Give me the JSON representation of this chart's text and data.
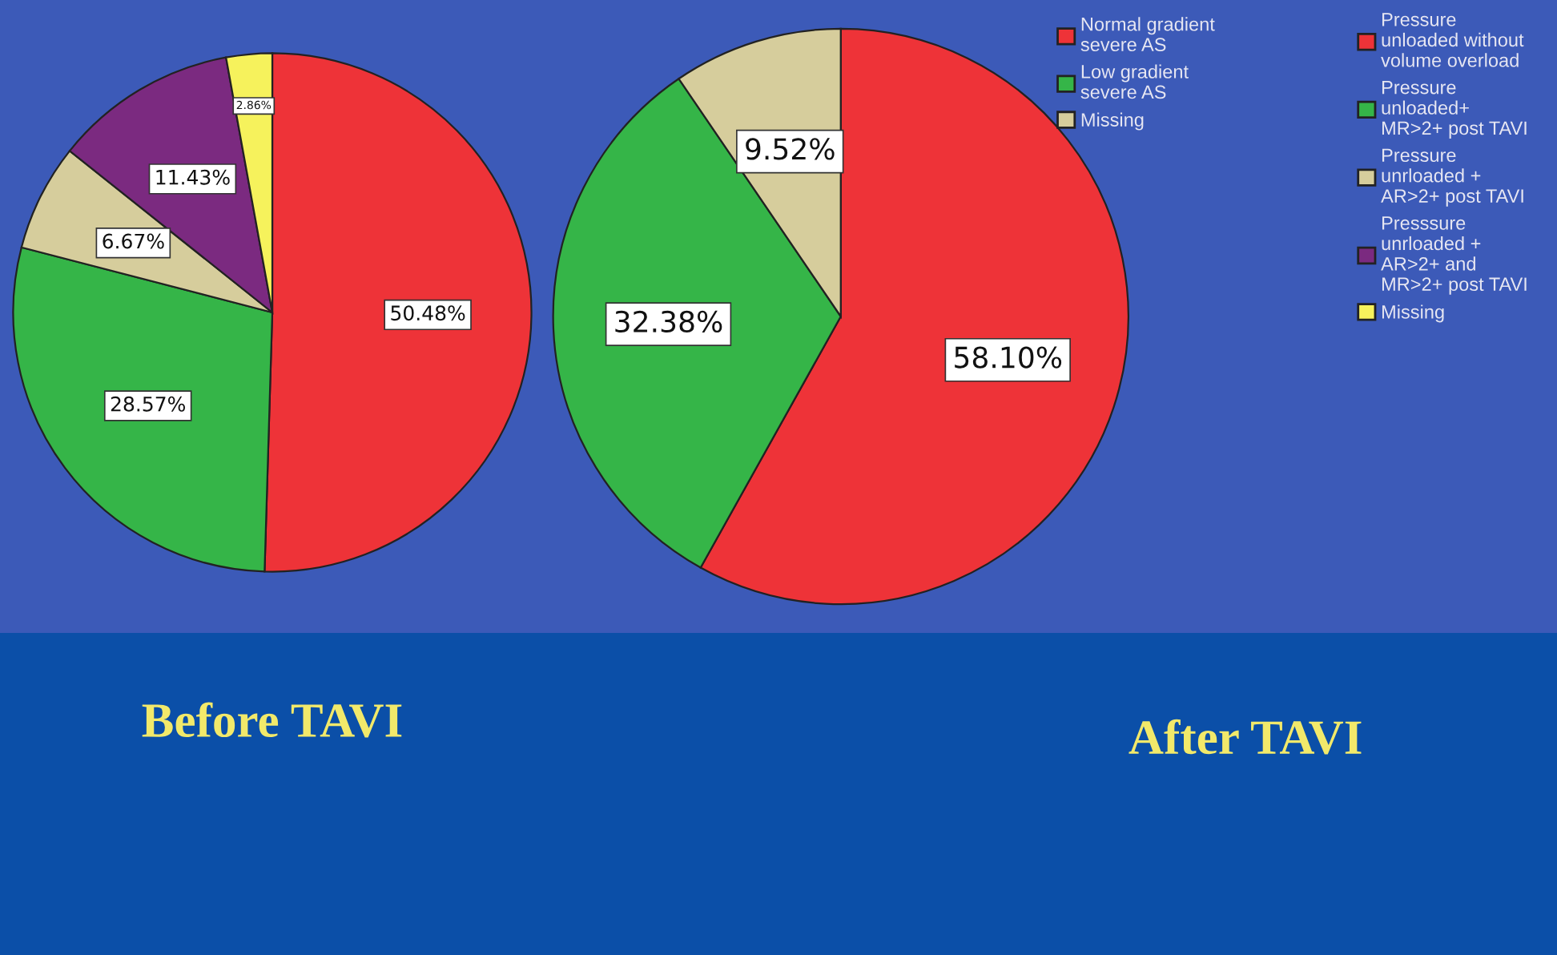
{
  "chart_data": [
    {
      "type": "pie",
      "title": "Before TAVI",
      "categories": [
        "Pressure\nunloaded without\nvolume overload",
        "Pressure\nunloaded+\nMR>2+ post TAVI",
        "Pressure\nunrloaded +\nAR>2+ post TAVI",
        "Presssure\nunrloaded +\nAR>2+ and\nMR>2+ post TAVI",
        "Missing"
      ],
      "values": [
        50.48,
        28.57,
        6.67,
        11.43,
        2.86
      ],
      "colors": [
        "#ee3338",
        "#35b548",
        "#d6cd9c",
        "#7b2a80",
        "#f6f25c"
      ],
      "value_labels": [
        "50.48%",
        "28.57%",
        "6.67%",
        "11.43%",
        "2.86%"
      ],
      "legend": "right",
      "annotations": [
        "After TAVI"
      ]
    },
    {
      "type": "pie",
      "categories": [
        "Normal gradient\nsevere AS",
        "Low gradient\nsevere AS",
        "Missing"
      ],
      "values": [
        58.1,
        32.38,
        9.52
      ],
      "colors": [
        "#ee3338",
        "#35b548",
        "#d6cd9c"
      ],
      "value_labels": [
        "58.10%",
        "32.38%",
        "9.52%"
      ],
      "legend": "top right"
    }
  ]
}
